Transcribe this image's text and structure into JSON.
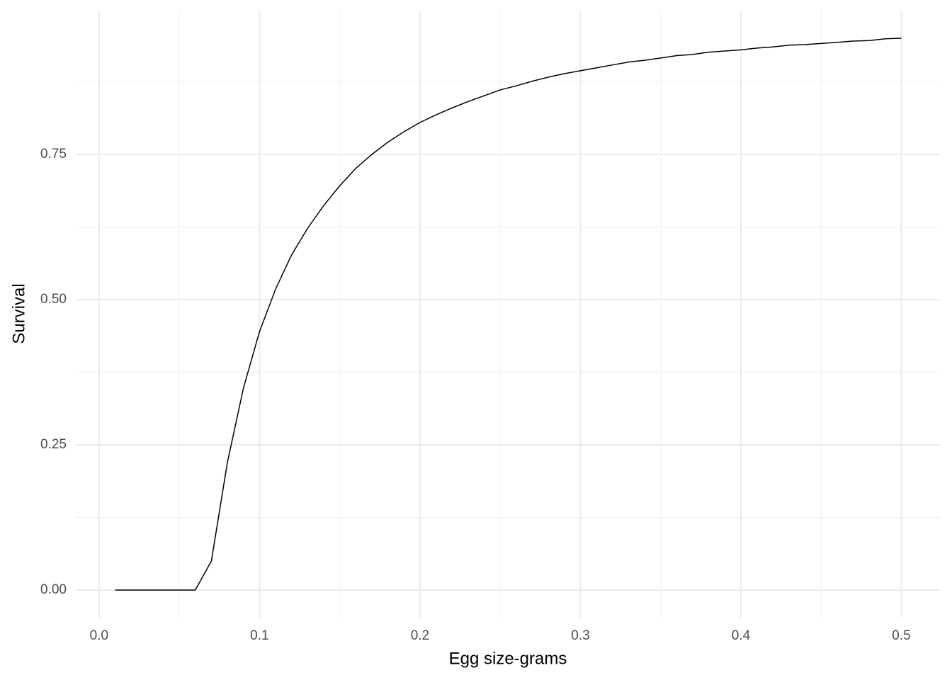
{
  "chart_data": {
    "type": "line",
    "x_label": "Egg size-grams",
    "y_label": "Survival",
    "x": [
      0.01,
      0.02,
      0.03,
      0.04,
      0.05,
      0.06,
      0.07,
      0.08,
      0.09,
      0.1,
      0.11,
      0.12,
      0.13,
      0.14,
      0.15,
      0.16,
      0.17,
      0.18,
      0.19,
      0.2,
      0.21,
      0.22,
      0.23,
      0.24,
      0.25,
      0.26,
      0.27,
      0.28,
      0.29,
      0.3,
      0.31,
      0.32,
      0.33,
      0.34,
      0.35,
      0.36,
      0.37,
      0.38,
      0.39,
      0.4,
      0.41,
      0.42,
      0.43,
      0.44,
      0.45,
      0.46,
      0.47,
      0.48,
      0.49,
      0.5
    ],
    "values": [
      0,
      0,
      0,
      0,
      0,
      0,
      0.05,
      0.22,
      0.348,
      0.445,
      0.518,
      0.577,
      0.623,
      0.662,
      0.696,
      0.726,
      0.75,
      0.771,
      0.789,
      0.805,
      0.818,
      0.83,
      0.841,
      0.851,
      0.861,
      0.868,
      0.876,
      0.883,
      0.889,
      0.894,
      0.899,
      0.904,
      0.909,
      0.912,
      0.916,
      0.92,
      0.922,
      0.926,
      0.928,
      0.93,
      0.933,
      0.935,
      0.938,
      0.939,
      0.941,
      0.943,
      0.945,
      0.946,
      0.949,
      0.95
    ],
    "color": "#000000",
    "xlim": [
      -0.0145,
      0.5245
    ],
    "ylim": [
      -0.0475,
      0.9975
    ],
    "xticks": [
      {
        "value": 0,
        "label": "0.0"
      },
      0.1,
      0.2,
      0.3,
      0.4,
      0.5
    ],
    "yticks": [
      {
        "value": 0,
        "label": "0.00"
      },
      0.25,
      {
        "value": 0.5,
        "label": "0.50"
      },
      0.75
    ],
    "x_minor_ticks": [
      0.05,
      0.15,
      0.25,
      0.35,
      0.45
    ],
    "y_minor_ticks": [
      0.125,
      0.375,
      0.625,
      0.875
    ],
    "grid": true
  }
}
